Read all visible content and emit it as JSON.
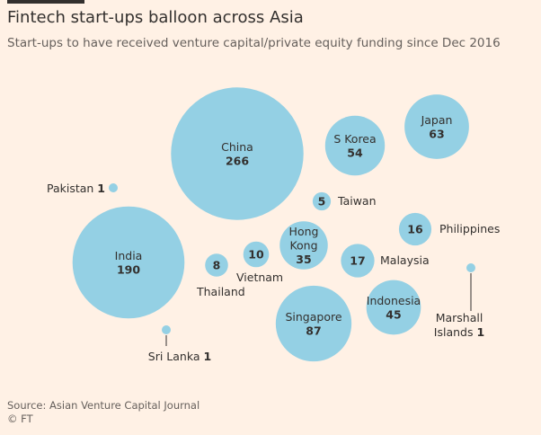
{
  "header": {
    "title": "Fintech start-ups balloon across Asia",
    "subtitle": "Start-ups to have received venture capital/private equity funding since Dec 2016"
  },
  "footer": {
    "source": "Source: Asian Venture Capital Journal",
    "credit": "© FT"
  },
  "colors": {
    "background": "#fff1e5",
    "bubble": "#94d0e4",
    "text": "#33302e"
  },
  "chart_data": {
    "type": "bubble",
    "title": "Fintech start-ups balloon across Asia",
    "subtitle": "Start-ups to have received venture capital/private equity funding since Dec 2016",
    "series": [
      {
        "name": "China",
        "value": 266
      },
      {
        "name": "India",
        "value": 190
      },
      {
        "name": "Singapore",
        "value": 87
      },
      {
        "name": "Japan",
        "value": 63
      },
      {
        "name": "S Korea",
        "value": 54
      },
      {
        "name": "Indonesia",
        "value": 45
      },
      {
        "name": "Hong Kong",
        "value": 35
      },
      {
        "name": "Malaysia",
        "value": 17
      },
      {
        "name": "Philippines",
        "value": 16
      },
      {
        "name": "Vietnam",
        "value": 10
      },
      {
        "name": "Thailand",
        "value": 8
      },
      {
        "name": "Taiwan",
        "value": 5
      },
      {
        "name": "Pakistan",
        "value": 1
      },
      {
        "name": "Sri Lanka",
        "value": 1
      },
      {
        "name": "Marshall Islands",
        "value": 1
      }
    ]
  }
}
